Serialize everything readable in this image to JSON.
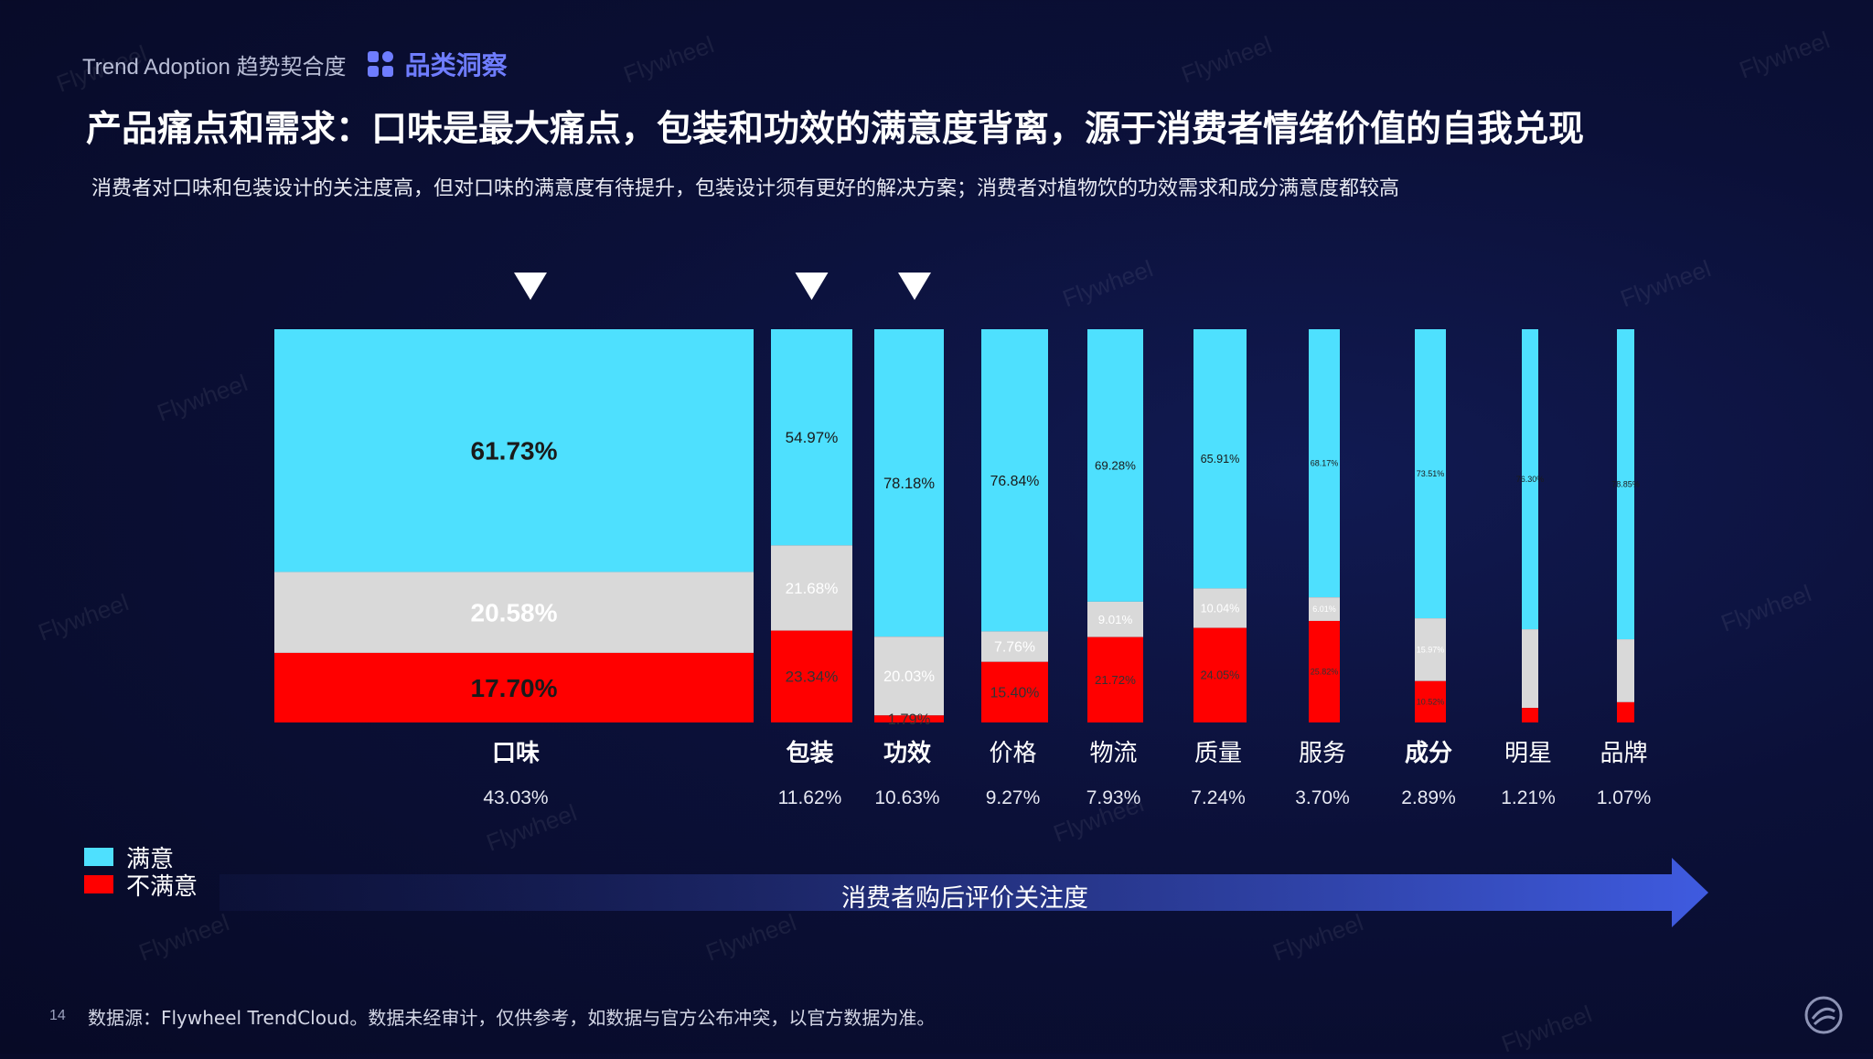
{
  "eyebrow": {
    "en": "Trend Adoption 趋势契合度",
    "tag_label": "品类洞察",
    "tag_icon": "grid-icon"
  },
  "headline": "产品痛点和需求：口味是最大痛点，包装和功效的满意度背离，源于消费者情绪价值的自我兑现",
  "subhead": "消费者对口味和包装设计的关注度高，但对口味的满意度有待提升，包装设计须有更好的解决方案；消费者对植物饮的功效需求和成分满意度都较高",
  "colors": {
    "satisfied": "#4ee0fe",
    "neutral": "#d9d9d9",
    "dissatisfied": "#ff0000",
    "accent": "#6f7dff"
  },
  "chart_data": {
    "type": "bar",
    "subtype": "marimekko-stacked-100",
    "categories": [
      "口味",
      "包装",
      "功效",
      "价格",
      "物流",
      "质量",
      "服务",
      "成分",
      "明星",
      "品牌"
    ],
    "attention_share": [
      43.03,
      11.62,
      10.63,
      9.27,
      7.93,
      7.24,
      3.7,
      2.89,
      1.21,
      1.07
    ],
    "attention_labels": [
      "43.03%",
      "11.62%",
      "10.63%",
      "9.27%",
      "7.93%",
      "7.24%",
      "3.70%",
      "2.89%",
      "1.21%",
      "1.07%"
    ],
    "series": [
      {
        "name": "满意",
        "values": [
          61.73,
          54.97,
          78.18,
          76.84,
          69.28,
          65.91,
          68.17,
          73.51,
          76.3,
          78.85
        ]
      },
      {
        "values": [
          20.58,
          21.68,
          20.03,
          7.76,
          9.01,
          10.04,
          6.01,
          15.97,
          20.0,
          16.0
        ]
      },
      {
        "name": "不满意",
        "values": [
          17.7,
          23.34,
          1.79,
          15.4,
          21.72,
          24.05,
          25.82,
          10.52,
          3.7,
          5.15
        ]
      }
    ],
    "segment_labels": [
      [
        "61.73%",
        "20.58%",
        "17.70%"
      ],
      [
        "54.97%",
        "21.68%",
        "23.34%"
      ],
      [
        "78.18%",
        "20.03%",
        "1.79%"
      ],
      [
        "76.84%",
        "7.76%",
        "15.40%"
      ],
      [
        "69.28%",
        "9.01%",
        "21.72%"
      ],
      [
        "65.91%",
        "10.04%",
        "24.05%"
      ],
      [
        "68.17%",
        "6.01%",
        "25.82%"
      ],
      [
        "73.51%",
        "15.97%",
        "10.52%"
      ],
      [
        "76.30%",
        "",
        ""
      ],
      [
        "78.85%",
        "",
        ""
      ]
    ],
    "highlighted_categories": [
      "口味",
      "包装",
      "功效"
    ],
    "bold_categories": [
      "口味",
      "包装",
      "功效",
      "成分"
    ],
    "ylim": [
      0,
      100
    ],
    "grid": false,
    "legend_position": "bottom-left"
  },
  "legend": [
    {
      "label": "满意",
      "color": "#4ee0fe"
    },
    {
      "label": "不满意",
      "color": "#ff0000"
    }
  ],
  "arrow_label": "消费者购后评价关注度",
  "page_number": "14",
  "source": "数据源：Flywheel TrendCloud。数据未经审计，仅供参考，如数据与官方公布冲突，以官方数据为准。",
  "watermark": "Flywheel"
}
